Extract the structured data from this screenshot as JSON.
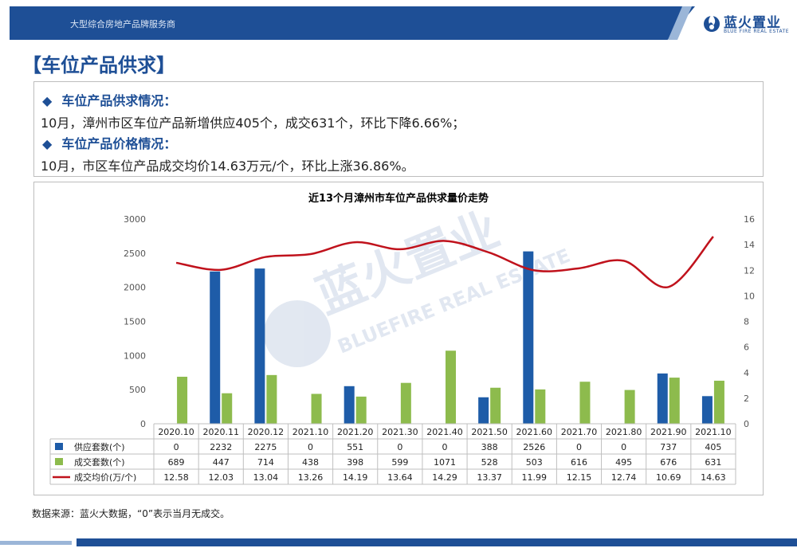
{
  "header": {
    "tagline": "大型综合房地产品牌服务商",
    "logo_cn": "蓝火置业",
    "logo_en": "BLUE FIRE REAL ESTATE"
  },
  "page_title": "【车位产品供求】",
  "summary": {
    "heading1": "车位产品供求情况：",
    "text1": "10月，漳州市区车位产品新增供应405个，成交631个，环比下降6.66%；",
    "heading2": "车位产品价格情况：",
    "text2": "10月，市区车位产品成交均价14.63万元/个，环比上涨36.86%。",
    "bullet": "◆"
  },
  "watermark": {
    "cn": "蓝火置业",
    "en": "BLUEFIRE REAL ESTATE"
  },
  "chart_data": {
    "type": "bar",
    "title": "近13个月漳州市车位产品供求量价走势",
    "categories": [
      "2020.10",
      "2020.11",
      "2020.12",
      "2021.10",
      "2021.20",
      "2021.30",
      "2021.40",
      "2021.50",
      "2021.60",
      "2021.70",
      "2021.80",
      "2021.90",
      "2021.10"
    ],
    "series": [
      {
        "name": "供应套数(个)",
        "kind": "bar",
        "axis": "left",
        "color": "#1e5ca8",
        "values": [
          0,
          2232,
          2275,
          0,
          551,
          0,
          0,
          388,
          2526,
          0,
          0,
          737,
          405
        ]
      },
      {
        "name": "成交套数(个)",
        "kind": "bar",
        "axis": "left",
        "color": "#8dbb4d",
        "values": [
          689,
          447,
          714,
          438,
          398,
          599,
          1071,
          528,
          503,
          616,
          495,
          676,
          631
        ]
      },
      {
        "name": "成交均价(万/个)",
        "kind": "line",
        "axis": "right",
        "color": "#c0121c",
        "values": [
          12.58,
          12.03,
          13.04,
          13.26,
          14.19,
          13.64,
          14.29,
          13.37,
          11.99,
          12.15,
          12.74,
          10.69,
          14.63
        ]
      }
    ],
    "y_left": {
      "min": 0,
      "max": 3000,
      "ticks": [
        0,
        500,
        1000,
        1500,
        2000,
        2500,
        3000
      ]
    },
    "y_right": {
      "min": 0,
      "max": 16,
      "ticks": [
        0,
        2,
        4,
        6,
        8,
        10,
        12,
        14,
        16
      ]
    },
    "grid": false,
    "legend": "data-table-below"
  },
  "source": "数据来源：蓝火大数据，“0”表示当月无成交。"
}
